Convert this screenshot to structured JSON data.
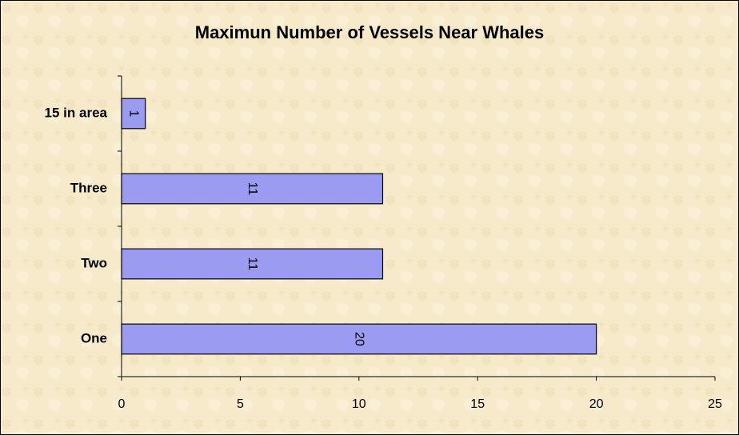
{
  "chart_data": {
    "type": "hbar",
    "title": "Maximun Number of Vessels Near Whales",
    "categories": [
      "One",
      "Two",
      "Three",
      "15 in area"
    ],
    "values": [
      20,
      11,
      11,
      1
    ],
    "color": "#9b9bf2",
    "xlim": [
      0,
      25
    ],
    "xticks": [
      0,
      5,
      10,
      15,
      20,
      25
    ]
  }
}
